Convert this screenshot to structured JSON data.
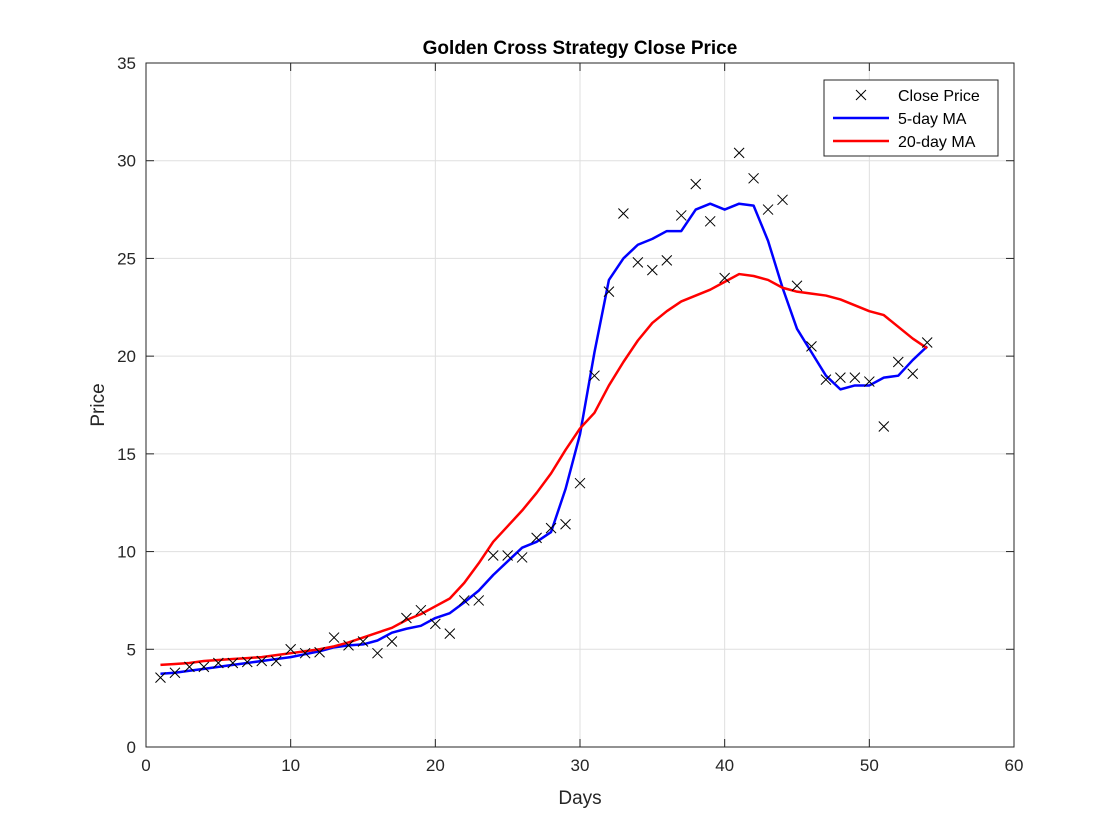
{
  "chart_data": {
    "type": "line",
    "title": "Golden Cross Strategy Close Price",
    "xlabel": "Days",
    "ylabel": "Price",
    "xlim": [
      0,
      60
    ],
    "ylim": [
      0,
      35
    ],
    "xticks": [
      0,
      10,
      20,
      30,
      40,
      50,
      60
    ],
    "yticks": [
      0,
      5,
      10,
      15,
      20,
      25,
      30,
      35
    ],
    "grid": true,
    "legend_position": "top-right",
    "x": [
      1,
      2,
      3,
      4,
      5,
      6,
      7,
      8,
      9,
      10,
      11,
      12,
      13,
      14,
      15,
      16,
      17,
      18,
      19,
      20,
      21,
      22,
      23,
      24,
      25,
      26,
      27,
      28,
      29,
      30,
      31,
      32,
      33,
      34,
      35,
      36,
      37,
      38,
      39,
      40,
      41,
      42,
      43,
      44,
      45,
      46,
      47,
      48,
      49,
      50,
      51,
      52,
      53,
      54
    ],
    "series": [
      {
        "name": "Close Price",
        "style": "marker-x",
        "color": "#000000",
        "values": [
          3.55,
          3.8,
          4.1,
          4.1,
          4.3,
          4.3,
          4.35,
          4.4,
          4.4,
          5.0,
          4.8,
          4.85,
          5.6,
          5.2,
          5.4,
          4.8,
          5.4,
          6.6,
          7.0,
          6.3,
          5.8,
          7.5,
          7.5,
          9.8,
          9.8,
          9.7,
          10.7,
          11.2,
          11.4,
          13.5,
          19.0,
          23.3,
          27.3,
          24.8,
          24.4,
          24.9,
          27.2,
          28.8,
          26.9,
          24.0,
          30.4,
          29.1,
          27.5,
          28.0,
          23.6,
          20.5,
          18.8,
          18.9,
          18.9,
          18.7,
          16.4,
          19.7,
          19.1,
          20.7
        ]
      },
      {
        "name": "5-day MA",
        "style": "line",
        "color": "#0000ff",
        "values": [
          3.75,
          3.8,
          3.9,
          4.0,
          4.1,
          4.2,
          4.3,
          4.4,
          4.5,
          4.6,
          4.75,
          4.9,
          5.1,
          5.2,
          5.25,
          5.45,
          5.85,
          6.05,
          6.2,
          6.6,
          6.85,
          7.4,
          8.0,
          8.8,
          9.5,
          10.2,
          10.5,
          11.0,
          13.2,
          16.0,
          20.2,
          23.9,
          25.0,
          25.7,
          26.0,
          26.4,
          26.4,
          27.5,
          27.8,
          27.5,
          27.8,
          27.7,
          25.9,
          23.5,
          21.4,
          20.2,
          19.0,
          18.3,
          18.5,
          18.5,
          18.9,
          19.0,
          19.8,
          20.5
        ]
      },
      {
        "name": "20-day MA",
        "style": "line",
        "color": "#ff0000",
        "values": [
          4.2,
          4.25,
          4.3,
          4.4,
          4.45,
          4.5,
          4.55,
          4.6,
          4.7,
          4.8,
          4.9,
          5.0,
          5.15,
          5.35,
          5.6,
          5.85,
          6.1,
          6.5,
          6.8,
          7.2,
          7.6,
          8.4,
          9.4,
          10.5,
          11.3,
          12.1,
          13.0,
          14.0,
          15.2,
          16.3,
          17.1,
          18.5,
          19.7,
          20.8,
          21.7,
          22.3,
          22.8,
          23.1,
          23.4,
          23.8,
          24.2,
          24.1,
          23.9,
          23.5,
          23.3,
          23.2,
          23.1,
          22.9,
          22.6,
          22.3,
          22.1,
          21.5,
          20.9,
          20.4
        ]
      }
    ]
  }
}
